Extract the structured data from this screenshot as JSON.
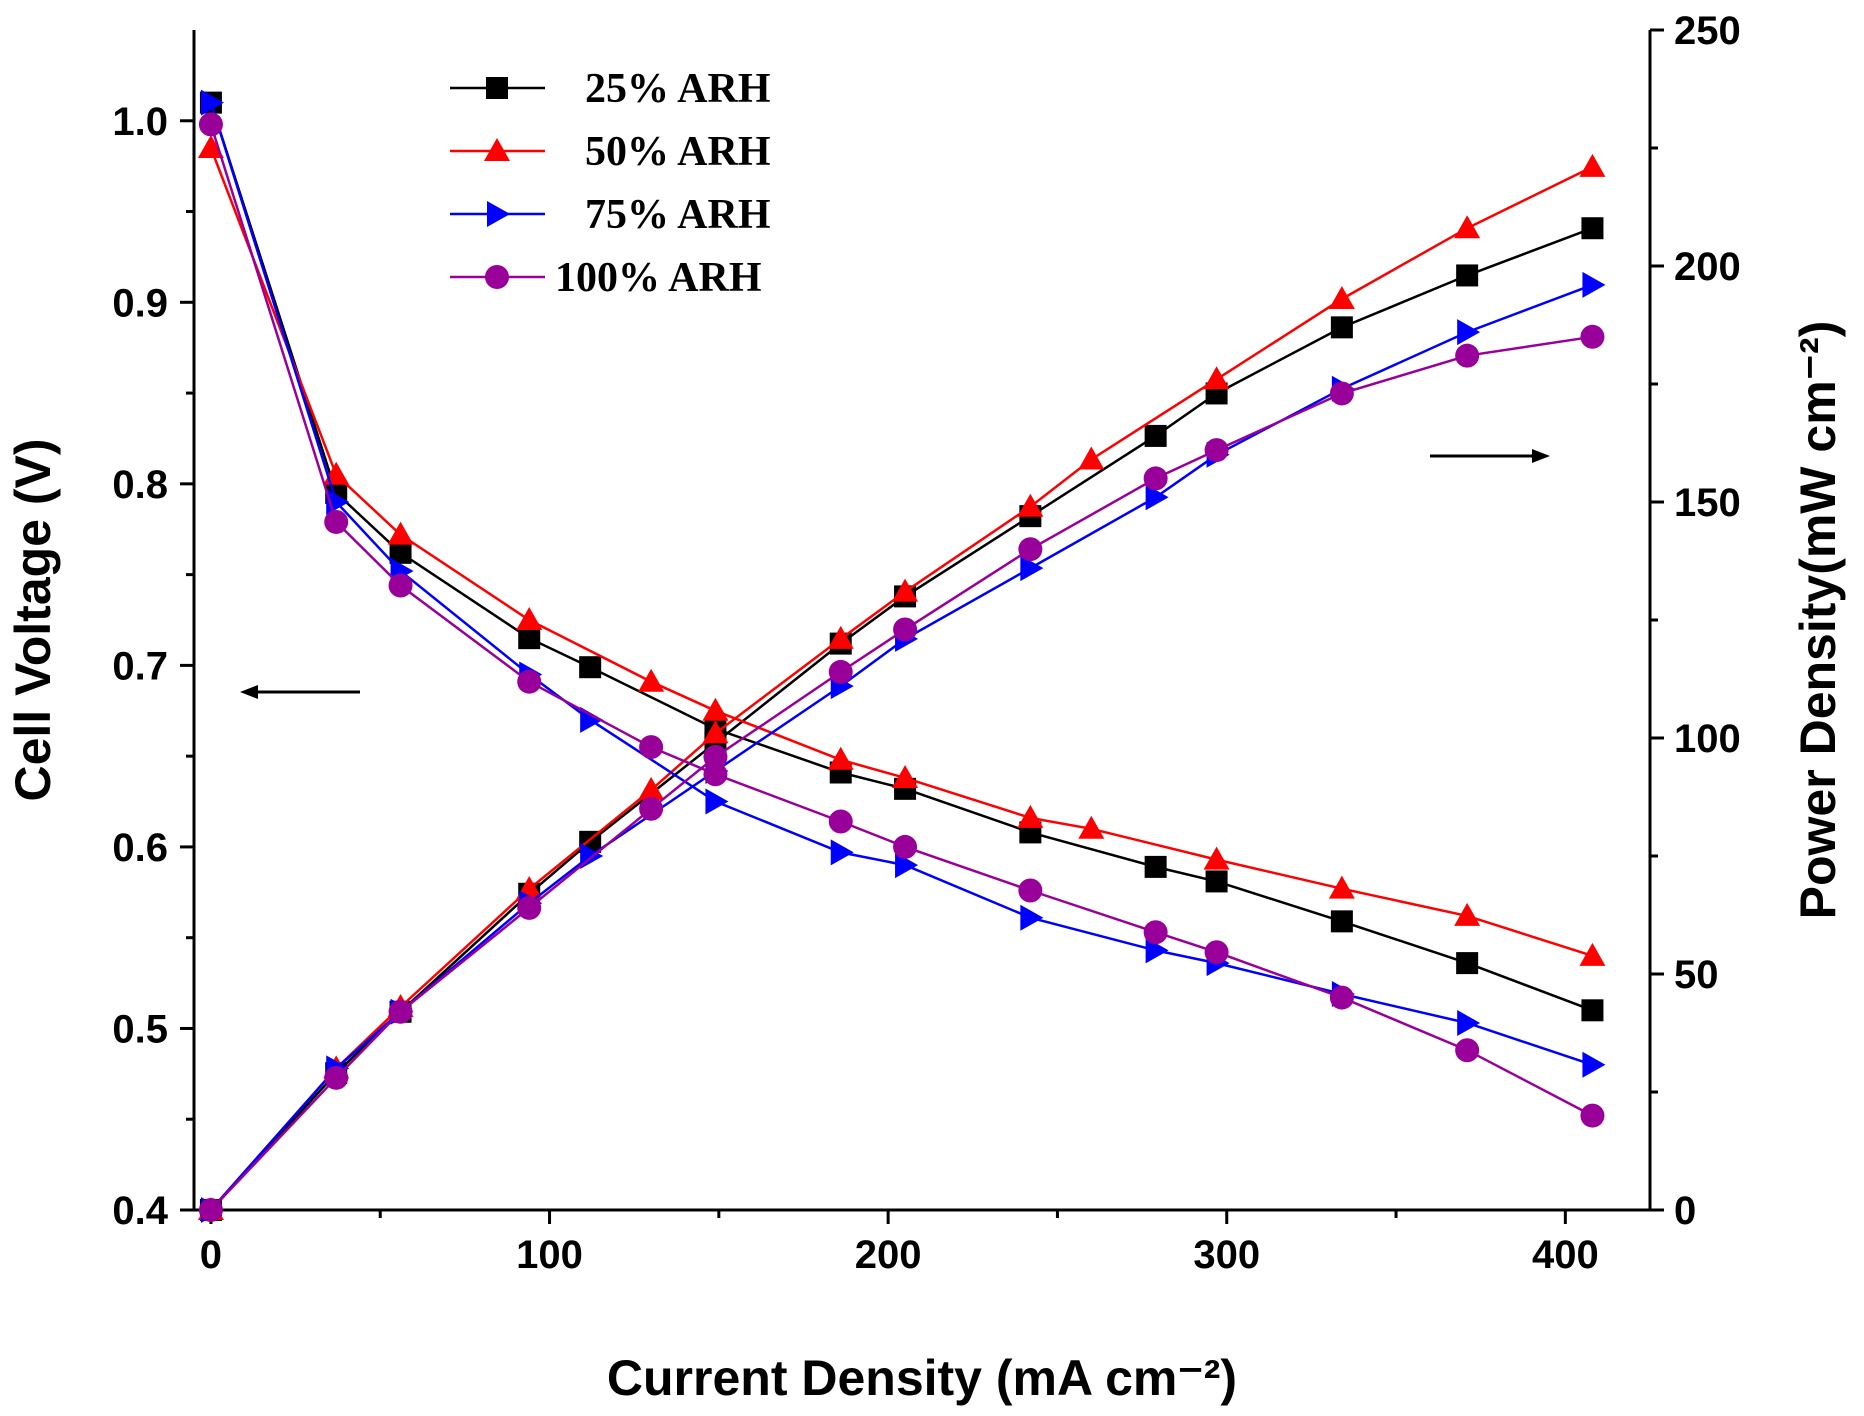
{
  "chart_data": {
    "type": "line",
    "xlabel": "Current Density (mA cm⁻²)",
    "ylabel_left": "Cell Voltage (V)",
    "ylabel_right": "Power Density(mW cm⁻²)",
    "xlim": [
      -5,
      425
    ],
    "ylim_left": [
      0.4,
      1.05
    ],
    "ylim_right": [
      0,
      250
    ],
    "xticks": [
      0,
      100,
      200,
      300,
      400
    ],
    "xtick_labels": [
      "0",
      "100",
      "200",
      "300",
      "400"
    ],
    "yticks_left": [
      0.4,
      0.5,
      0.6,
      0.7,
      0.8,
      0.9,
      1.0
    ],
    "ytick_labels_left": [
      "0.4",
      "0.5",
      "0.6",
      "0.7",
      "0.8",
      "0.9",
      "1.0"
    ],
    "yticks_right": [
      0,
      50,
      100,
      150,
      200,
      250
    ],
    "ytick_labels_right": [
      "0",
      "50",
      "100",
      "150",
      "200",
      "250"
    ],
    "grid": false,
    "legend_position": "top-left",
    "annotations": [
      "arrow pointing left toward the Cell Voltage axis",
      "arrow pointing right toward the Power Density axis"
    ],
    "series": [
      {
        "name": "25% ARH",
        "color": "#000000",
        "marker": "square",
        "x": [
          0,
          37,
          56,
          94,
          112,
          149,
          186,
          205,
          242,
          279,
          297,
          334,
          371,
          408
        ],
        "voltage": [
          1.01,
          0.795,
          0.762,
          0.715,
          0.699,
          0.665,
          0.641,
          0.632,
          0.608,
          0.589,
          0.581,
          0.559,
          0.536,
          0.51
        ],
        "power": [
          0,
          29,
          42,
          67,
          78,
          99,
          120,
          130,
          147,
          164,
          173,
          187,
          198,
          208
        ]
      },
      {
        "name": "50% ARH",
        "color": "#ff0000",
        "marker": "triangle-up",
        "x": [
          0,
          37,
          56,
          94,
          130,
          149,
          186,
          205,
          242,
          260,
          297,
          334,
          371,
          408
        ],
        "voltage": [
          0.985,
          0.805,
          0.772,
          0.725,
          0.691,
          0.675,
          0.648,
          0.638,
          0.616,
          0.61,
          0.593,
          0.577,
          0.562,
          0.54
        ],
        "power": [
          0,
          30,
          43,
          68,
          89,
          101,
          121,
          131,
          149,
          159,
          176,
          193,
          208,
          221
        ]
      },
      {
        "name": "75% ARH",
        "color": "#0000ff",
        "marker": "triangle-right",
        "x": [
          0,
          37,
          56,
          94,
          112,
          149,
          186,
          205,
          242,
          279,
          297,
          334,
          371,
          408
        ],
        "voltage": [
          1.01,
          0.79,
          0.752,
          0.695,
          0.67,
          0.625,
          0.597,
          0.59,
          0.561,
          0.543,
          0.536,
          0.519,
          0.503,
          0.48
        ],
        "power": [
          0,
          30,
          42,
          65,
          75,
          93,
          111,
          121,
          136,
          151,
          160,
          174,
          186,
          196
        ]
      },
      {
        "name": "100% ARH",
        "color": "#990099",
        "marker": "circle",
        "x": [
          0,
          37,
          56,
          94,
          130,
          149,
          186,
          205,
          242,
          279,
          297,
          334,
          371,
          408
        ],
        "voltage": [
          0.998,
          0.779,
          0.744,
          0.691,
          0.655,
          0.64,
          0.614,
          0.6,
          0.576,
          0.553,
          0.542,
          0.517,
          0.488,
          0.452
        ],
        "power": [
          0,
          28,
          42,
          64,
          85,
          96,
          114,
          123,
          140,
          155,
          161,
          173,
          181,
          185
        ]
      }
    ]
  }
}
